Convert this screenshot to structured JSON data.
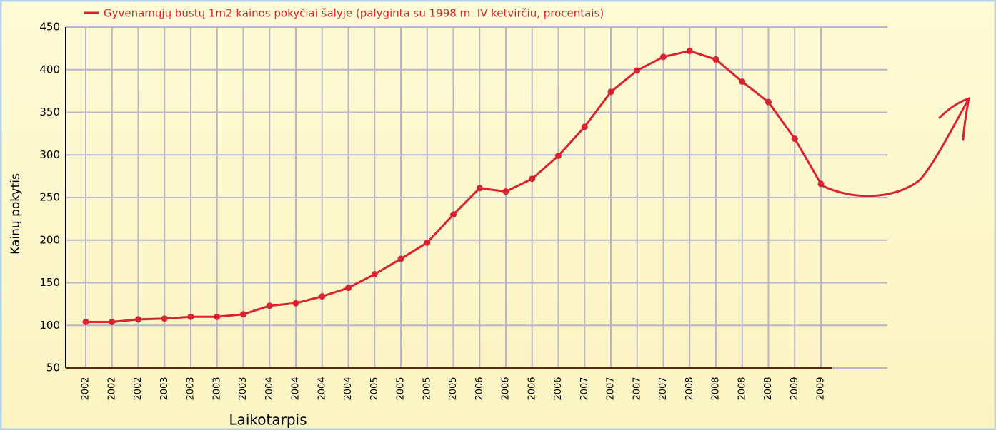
{
  "chart_data": {
    "type": "line",
    "title": "Gyvenamųjų būstų 1m2 kainos pokyčiai šalyje (palyginta su 1998 m. IV ketvirčiu, procentais)",
    "x_label": "Laikotarpis",
    "y_label": "Kainų pokytis",
    "categories": [
      "2002",
      "2002",
      "2002",
      "2003",
      "2003",
      "2003",
      "2003",
      "2004",
      "2004",
      "2004",
      "2004",
      "2005",
      "2005",
      "2005",
      "2005",
      "2006",
      "2006",
      "2006",
      "2006",
      "2007",
      "2007",
      "2007",
      "2007",
      "2008",
      "2008",
      "2008",
      "2008",
      "2009",
      "2009"
    ],
    "series": [
      {
        "name": "Gyvenamųjų būstų 1m2 kainos pokyčiai šalyje (palyginta su 1998 m. IV ketvirčiu, procentais)",
        "color": "#d9232e",
        "values": [
          104,
          104,
          107,
          108,
          110,
          110,
          113,
          123,
          126,
          134,
          144,
          160,
          178,
          197,
          230,
          261,
          257,
          272,
          299,
          333,
          374,
          399,
          415,
          422,
          412,
          386,
          362,
          319,
          266
        ]
      }
    ],
    "ylim": [
      50,
      450
    ],
    "yticks": [
      50,
      100,
      150,
      200,
      250,
      300,
      350,
      400,
      450
    ],
    "grid": true
  }
}
